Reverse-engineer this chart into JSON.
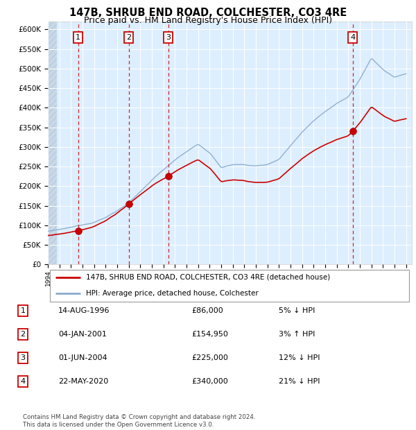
{
  "title": "147B, SHRUB END ROAD, COLCHESTER, CO3 4RE",
  "subtitle": "Price paid vs. HM Land Registry's House Price Index (HPI)",
  "ylim": [
    0,
    620000
  ],
  "yticks": [
    0,
    50000,
    100000,
    150000,
    200000,
    250000,
    300000,
    350000,
    400000,
    450000,
    500000,
    550000,
    600000
  ],
  "ytick_labels": [
    "£0",
    "£50K",
    "£100K",
    "£150K",
    "£200K",
    "£250K",
    "£300K",
    "£350K",
    "£400K",
    "£450K",
    "£500K",
    "£550K",
    "£600K"
  ],
  "xlim": [
    1994.0,
    2025.5
  ],
  "background_color": "#ddeeff",
  "hatch_color": "#c8d8e8",
  "hpi_line_color": "#88aacc",
  "price_line_color": "#cc0000",
  "dot_color": "#cc0000",
  "vline_color": "#cc0000",
  "grid_color": "#ffffff",
  "title_fontsize": 10.5,
  "subtitle_fontsize": 9,
  "footer_text": "Contains HM Land Registry data © Crown copyright and database right 2024.\nThis data is licensed under the Open Government Licence v3.0.",
  "transactions": [
    {
      "num": 1,
      "date_str": "14-AUG-1996",
      "price": 86000,
      "pct": "5%",
      "dir": "↓",
      "year": 1996.62
    },
    {
      "num": 2,
      "date_str": "04-JAN-2001",
      "price": 154950,
      "pct": "3%",
      "dir": "↑",
      "year": 2001.01
    },
    {
      "num": 3,
      "date_str": "01-JUN-2004",
      "price": 225000,
      "pct": "12%",
      "dir": "↓",
      "year": 2004.42
    },
    {
      "num": 4,
      "date_str": "22-MAY-2020",
      "price": 340000,
      "pct": "21%",
      "dir": "↓",
      "year": 2020.39
    }
  ],
  "legend_entries": [
    "147B, SHRUB END ROAD, COLCHESTER, CO3 4RE (detached house)",
    "HPI: Average price, detached house, Colchester"
  ]
}
